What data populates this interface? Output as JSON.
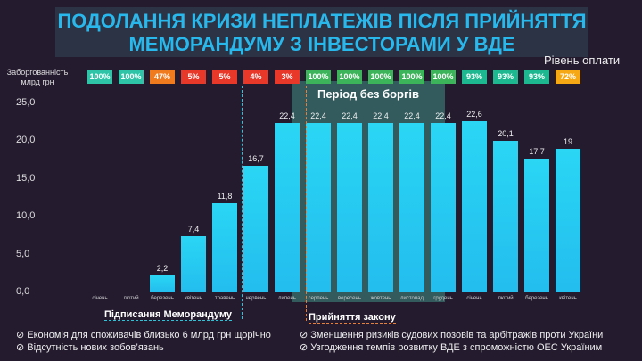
{
  "title": [
    "ПОДОЛАННЯ КРИЗИ НЕПЛАТЕЖІВ ПІСЛЯ ПРИЙНЯТТЯ",
    "МЕМОРАНДУМУ З ІНВЕСТОРАМИ У ВДЕ"
  ],
  "payment_level_label": "Рівень оплати",
  "debt_label": [
    "Заборгованність",
    "млрд грн"
  ],
  "period_label": "Період без боргів",
  "memo_label": "Підписання Меморандуму",
  "law_label": "Прийняття закону",
  "notes": [
    "Економія для споживачів близько 6 млрд грн щорічно",
    "Відсутність нових зобов’язань",
    "Зменшення ризиків судових позовів та арбітражів проти України",
    "Узгодження темпів розвитку ВДЕ з спроможністю ОЕС Україним"
  ],
  "chart_data": {
    "type": "bar",
    "categories": [
      "січень",
      "лютий",
      "березень",
      "квітень",
      "травень",
      "червень",
      "липень",
      "серпень",
      "вересень",
      "жовтень",
      "листопад",
      "грудень",
      "січень",
      "лютий",
      "березень",
      "квітень"
    ],
    "values": [
      0,
      0,
      2.2,
      7.4,
      11.8,
      16.7,
      22.4,
      22.4,
      22.4,
      22.4,
      22.4,
      22.4,
      22.6,
      20.1,
      17.7,
      19
    ],
    "value_labels": [
      "",
      "",
      "2,2",
      "7,4",
      "11,8",
      "16,7",
      "22,4",
      "22,4",
      "22,4",
      "22,4",
      "22,4",
      "22,4",
      "22,6",
      "20,1",
      "17,7",
      "19"
    ],
    "payment_levels": [
      "100%",
      "100%",
      "47%",
      "5%",
      "5%",
      "4%",
      "3%",
      "100%",
      "100%",
      "100%",
      "100%",
      "100%",
      "93%",
      "93%",
      "93%",
      "72%"
    ],
    "payment_colors": [
      "#2ec4a8",
      "#2ec4a8",
      "#f07a1e",
      "#e8382a",
      "#e8382a",
      "#e8382a",
      "#e8382a",
      "#3bb45a",
      "#3bb45a",
      "#3bb45a",
      "#3bb45a",
      "#3bb45a",
      "#1db890",
      "#1db890",
      "#1db890",
      "#f5a814"
    ],
    "yticks": [
      "0,0",
      "5,0",
      "10,0",
      "15,0",
      "20,0",
      "25,0"
    ],
    "ylim": [
      0,
      25
    ],
    "bar_color": "#23bdee"
  }
}
